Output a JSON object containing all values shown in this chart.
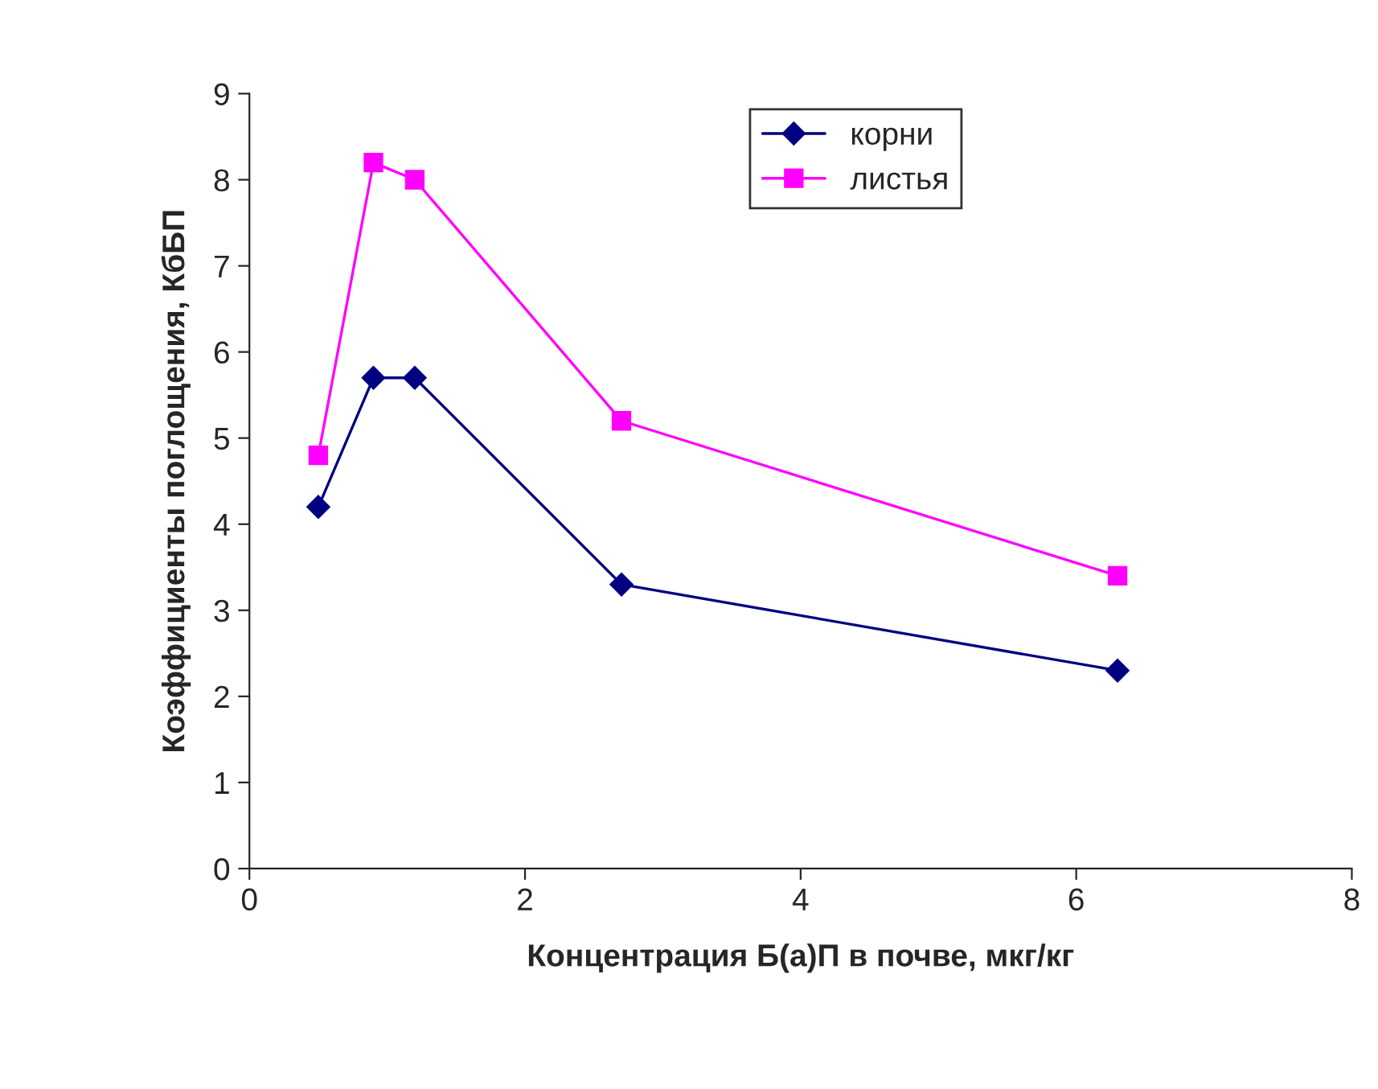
{
  "chart_data": {
    "type": "line",
    "xlabel": "Концентрация Б(а)П в почве, мкг/кг",
    "ylabel": "Коэффициенты поглощения, КбБП",
    "x": [
      0.5,
      0.9,
      1.2,
      2.7,
      6.3
    ],
    "series": [
      {
        "name": "корни",
        "color": "#000080",
        "marker": "diamond",
        "values": [
          4.2,
          5.7,
          5.7,
          3.3,
          2.3
        ]
      },
      {
        "name": "листья",
        "color": "#ff00ff",
        "marker": "square",
        "values": [
          4.8,
          8.2,
          8.0,
          5.2,
          3.4
        ]
      }
    ],
    "xlim": [
      0,
      8
    ],
    "xticks": [
      0,
      2,
      4,
      6,
      8
    ],
    "ylim": [
      0,
      9
    ],
    "yticks": [
      0,
      1,
      2,
      3,
      4,
      5,
      6,
      7,
      8,
      9
    ],
    "grid": false,
    "legend": "top",
    "line_style": "solid"
  }
}
